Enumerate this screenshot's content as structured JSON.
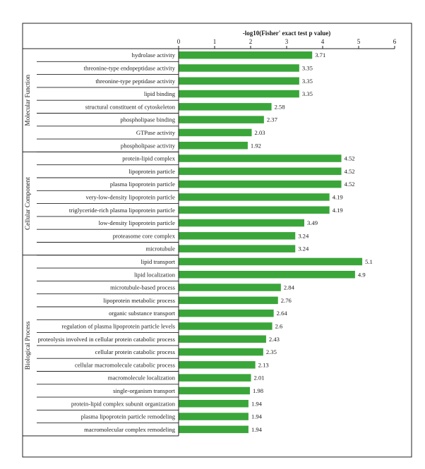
{
  "chart_data": {
    "type": "bar",
    "orientation": "horizontal",
    "title": "",
    "xlabel": "-log10(Fisher' exact test p value)",
    "ylabel": "",
    "xlim": [
      0,
      6
    ],
    "xticks": [
      "0",
      "1",
      "2",
      "3",
      "4",
      "5",
      "6"
    ],
    "grid": false,
    "legend": "none",
    "bar_color": "#3aa63a",
    "groups": [
      {
        "name": "Molecular Function",
        "categories": [
          "hydrolase activity",
          "threonine-type endopeptidase activity",
          "threonine-type peptidase activity",
          "lipid binding",
          "structural constituent of cytoskeleton",
          "phospholipase binding",
          "GTPase activity",
          "phospholipase activity"
        ],
        "values": [
          3.71,
          3.35,
          3.35,
          3.35,
          2.58,
          2.37,
          2.03,
          1.92
        ],
        "labels": [
          "3.71",
          "3.35",
          "3.35",
          "3.35",
          "2.58",
          "2.37",
          "2.03",
          "1.92"
        ]
      },
      {
        "name": "Cellular Component",
        "categories": [
          "protein-lipid complex",
          "lipoprotein particle",
          "plasma lipoprotein particle",
          "very-low-density lipoprotein particle",
          "triglyceride-rich plasma lipoprotein particle",
          "low-density lipoprotein particle",
          "proteasome core complex",
          "microtubule"
        ],
        "values": [
          4.52,
          4.52,
          4.52,
          4.19,
          4.19,
          3.49,
          3.24,
          3.24
        ],
        "labels": [
          "4.52",
          "4.52",
          "4.52",
          "4.19",
          "4.19",
          "3.49",
          "3.24",
          "3.24"
        ]
      },
      {
        "name": "Biological Process",
        "categories": [
          "lipid transport",
          "lipid localization",
          "microtubule-based process",
          "lipoprotein metabolic process",
          "organic substance transport",
          "regulation of plasma lipoprotein particle levels",
          "proteolysis involved in cellular protein catabolic process",
          "cellular protein catabolic process",
          "cellular macromolecule catabolic process",
          "macromolecule localization",
          "single-organism transport",
          "protein-lipid complex subunit organization",
          "plasma lipoprotein particle remodeling",
          "macromolecular complex remodeling"
        ],
        "values": [
          5.1,
          4.9,
          2.84,
          2.76,
          2.64,
          2.6,
          2.43,
          2.35,
          2.13,
          2.01,
          1.98,
          1.94,
          1.94,
          1.94
        ],
        "labels": [
          "5.1",
          "4.9",
          "2.84",
          "2.76",
          "2.64",
          "2.6",
          "2.43",
          "2.35",
          "2.13",
          "2.01",
          "1.98",
          "1.94",
          "1.94",
          "1.94"
        ]
      }
    ]
  }
}
